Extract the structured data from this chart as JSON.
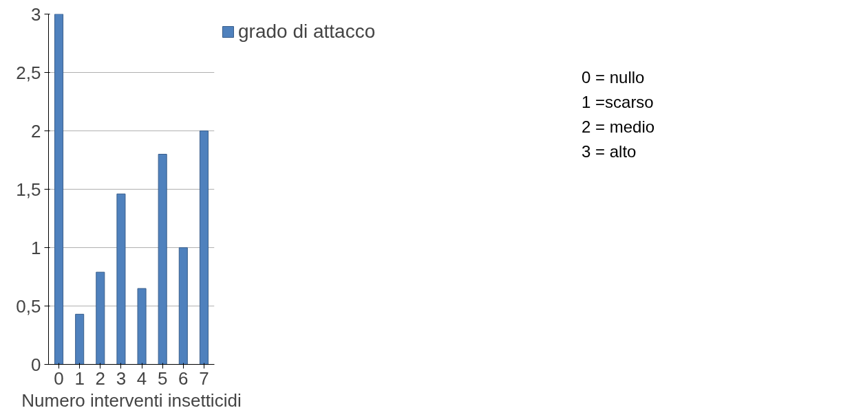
{
  "chart_data": {
    "type": "bar",
    "xlabel": "Numero interventi insetticidi",
    "categories": [
      "0",
      "1",
      "2",
      "3",
      "4",
      "5",
      "6",
      "7"
    ],
    "series": [
      {
        "name": "grado di attacco",
        "color": "#4f81bd",
        "values": [
          3,
          0.43,
          0.79,
          1.46,
          0.65,
          1.8,
          1.0,
          2.0
        ]
      }
    ],
    "ylim": [
      0,
      3
    ],
    "yticks": [
      0,
      {
        "value": 0.5,
        "label": "0,5"
      },
      1,
      {
        "value": 1.5,
        "label": "1,5"
      },
      2,
      {
        "value": 2.5,
        "label": "2,5"
      },
      3
    ],
    "grid": "y",
    "legend": "top right",
    "annotations": [
      "0 = nullo",
      "1 =scarso",
      "2 = medio",
      "3 = alto"
    ]
  }
}
